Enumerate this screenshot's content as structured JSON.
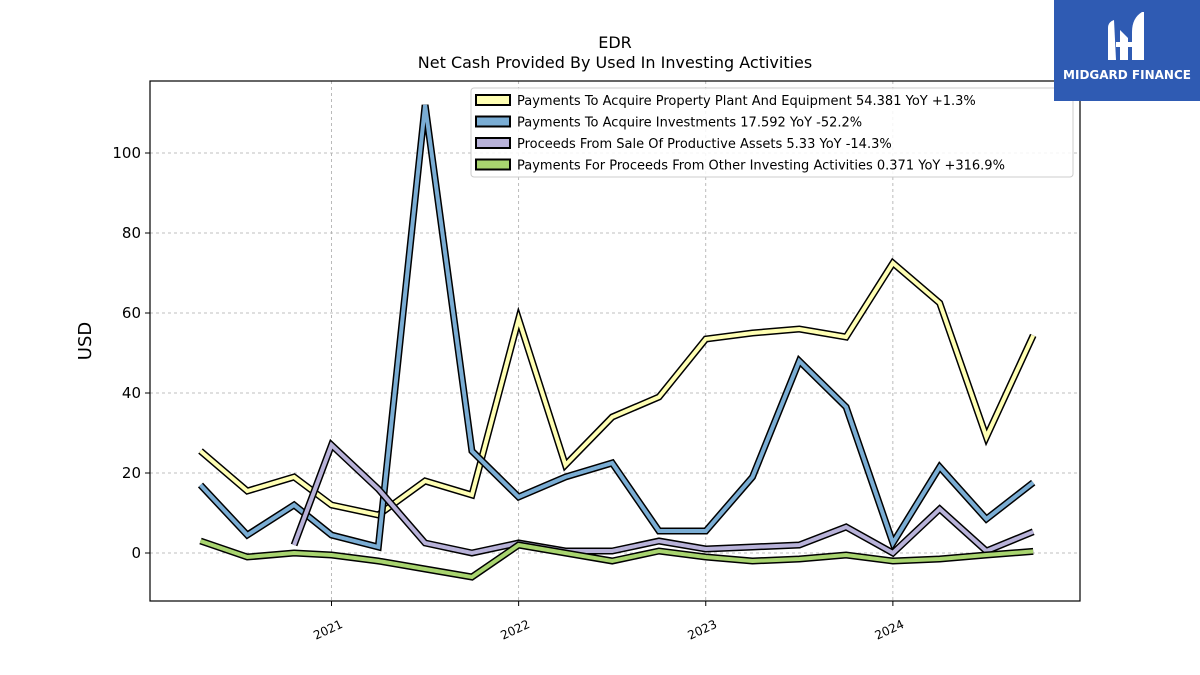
{
  "chart_data": {
    "type": "line",
    "title": "EDR",
    "subtitle": "Net Cash Provided By Used In Investing Activities",
    "ylabel": "USD",
    "xlabel": "",
    "ylim": [
      -12,
      118
    ],
    "yticks": [
      0,
      20,
      40,
      60,
      80,
      100
    ],
    "xlim": [
      2020.03,
      2025.0
    ],
    "xticks": [
      {
        "value": 2021.0,
        "label": "2021"
      },
      {
        "value": 2022.0,
        "label": "2022"
      },
      {
        "value": 2023.0,
        "label": "2023"
      },
      {
        "value": 2024.0,
        "label": "2024"
      }
    ],
    "grid": true,
    "legend_position": "top-right",
    "x": [
      2020.3,
      2020.55,
      2020.8,
      2021.0,
      2021.25,
      2021.5,
      2021.75,
      2022.0,
      2022.25,
      2022.5,
      2022.75,
      2023.0,
      2023.25,
      2023.5,
      2023.75,
      2024.0,
      2024.25,
      2024.5,
      2024.75
    ],
    "series": [
      {
        "name": "Payments To Acquire Property Plant And Equipment",
        "legend_label": "Payments To Acquire Property Plant And Equipment  54.381 YoY +1.3%",
        "color": "#ffffb3",
        "values": [
          25.5,
          15.5,
          19,
          12,
          9.5,
          18,
          14.5,
          58.5,
          22,
          34,
          39,
          53.5,
          55,
          56,
          54,
          72.5,
          62.5,
          29,
          54.4
        ]
      },
      {
        "name": "Payments To Acquire Investments",
        "legend_label": "Payments To Acquire Investments  17.592 YoY -52.2%",
        "color": "#7aadd4",
        "values": [
          17,
          4.5,
          12,
          4.5,
          1.5,
          112,
          25.5,
          14,
          19,
          22.5,
          5.5,
          5.5,
          19,
          48,
          36.5,
          2.5,
          21.5,
          8.5,
          17.6
        ]
      },
      {
        "name": "Proceeds From Sale Of Productive Assets",
        "legend_label": "Proceeds From Sale Of Productive Assets  5.33 YoY -14.3%",
        "color": "#b8b2d9",
        "values": [
          null,
          null,
          2,
          27,
          16,
          2.5,
          0,
          2.5,
          0.5,
          0.5,
          3,
          1,
          1.5,
          2,
          6.5,
          0,
          11,
          0.5,
          5.3
        ]
      },
      {
        "name": "Payments For Proceeds From Other Investing Activities",
        "legend_label": "Payments For Proceeds From Other Investing Activities  0.371 YoY +316.9%",
        "color": "#a8d46f",
        "values": [
          3,
          -1,
          0,
          -0.5,
          -2,
          -4,
          -6,
          2,
          0,
          -2,
          0.5,
          -1,
          -2,
          -1.5,
          -0.5,
          -2,
          -1.5,
          -0.5,
          0.4
        ]
      }
    ]
  },
  "logo": {
    "text": "MIDGARD FINANCE",
    "color": "#2f5bb3"
  }
}
